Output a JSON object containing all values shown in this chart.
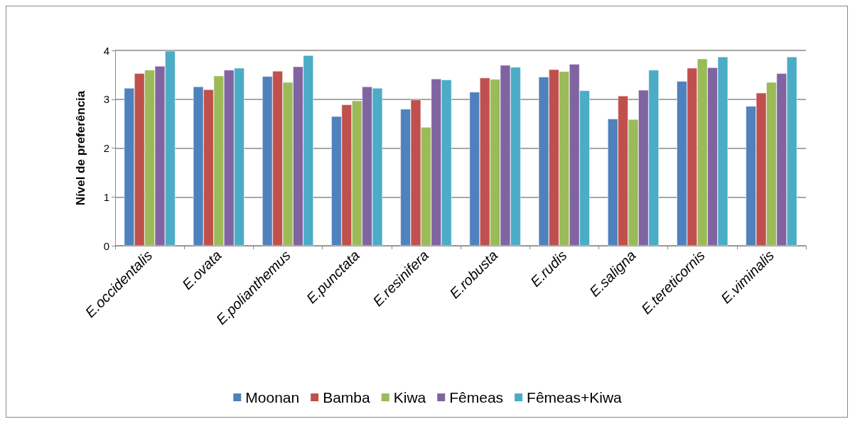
{
  "chart_data": {
    "type": "bar",
    "ylabel": "Nível de preferência",
    "categories": [
      "E.occidentalis",
      "E.ovata",
      "E.polianthemus",
      "E.punctata",
      "E.resinifera",
      "E.robusta",
      "E.rudis",
      "E.saligna",
      "E.tereticornis",
      "E.viminalis"
    ],
    "series": [
      {
        "name": "Moonan",
        "color": "#4f81bd",
        "values": [
          3.23,
          3.26,
          3.47,
          2.65,
          2.8,
          3.15,
          3.46,
          2.6,
          3.37,
          2.86
        ]
      },
      {
        "name": "Bamba",
        "color": "#c0504d",
        "values": [
          3.53,
          3.2,
          3.58,
          2.89,
          2.99,
          3.44,
          3.61,
          3.07,
          3.64,
          3.13
        ]
      },
      {
        "name": "Kiwa",
        "color": "#9bbb59",
        "values": [
          3.6,
          3.48,
          3.35,
          2.97,
          2.43,
          3.41,
          3.57,
          2.59,
          3.83,
          3.35
        ]
      },
      {
        "name": "Fêmeas",
        "color": "#8064a2",
        "values": [
          3.68,
          3.6,
          3.67,
          3.26,
          3.42,
          3.7,
          3.72,
          3.19,
          3.65,
          3.53
        ]
      },
      {
        "name": "Fêmeas+Kiwa",
        "color": "#4bacc6",
        "values": [
          3.99,
          3.64,
          3.9,
          3.23,
          3.4,
          3.66,
          3.18,
          3.6,
          3.87,
          3.87
        ]
      }
    ],
    "ylim": [
      0,
      4
    ],
    "yticks": [
      0,
      1,
      2,
      3,
      4
    ],
    "grid": "y",
    "legend": "bottom"
  }
}
